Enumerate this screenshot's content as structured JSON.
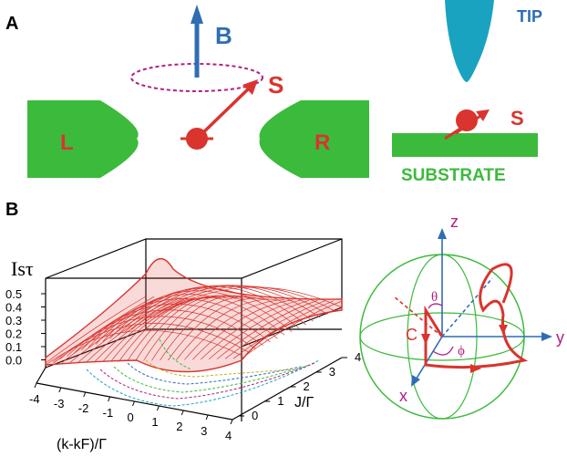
{
  "panel_a": {
    "label": "A",
    "field_label": "B",
    "spin_label": "S",
    "left_lead": "L",
    "right_lead": "R",
    "tip_label": "TIP",
    "substrate_spin_label": "S",
    "substrate_label": "SUBSTRATE"
  },
  "panel_b": {
    "label": "B",
    "z_axis_title": "Isτ",
    "z_ticks": [
      "0.5",
      "0.4",
      "0.3",
      "0.2",
      "0.1",
      "0.0"
    ],
    "x_axis_title": "(k-kF)/Γ",
    "x_ticks": [
      "-4",
      "-3",
      "-2",
      "-1",
      "0",
      "1",
      "2",
      "3",
      "4"
    ],
    "y_axis_title": "J/Γ",
    "y_ticks": [
      "0",
      "1",
      "2",
      "3",
      "4"
    ]
  },
  "sphere": {
    "z_label": "z",
    "y_label": "y",
    "x_label": "x",
    "theta_label": "θ",
    "phi_label": "ϕ",
    "curve_label": "C"
  },
  "colors": {
    "green": "#3cba3c",
    "red": "#d9342e",
    "blue": "#2f6db5",
    "magenta": "#b0207f",
    "cyan": "#1aa3c0"
  }
}
